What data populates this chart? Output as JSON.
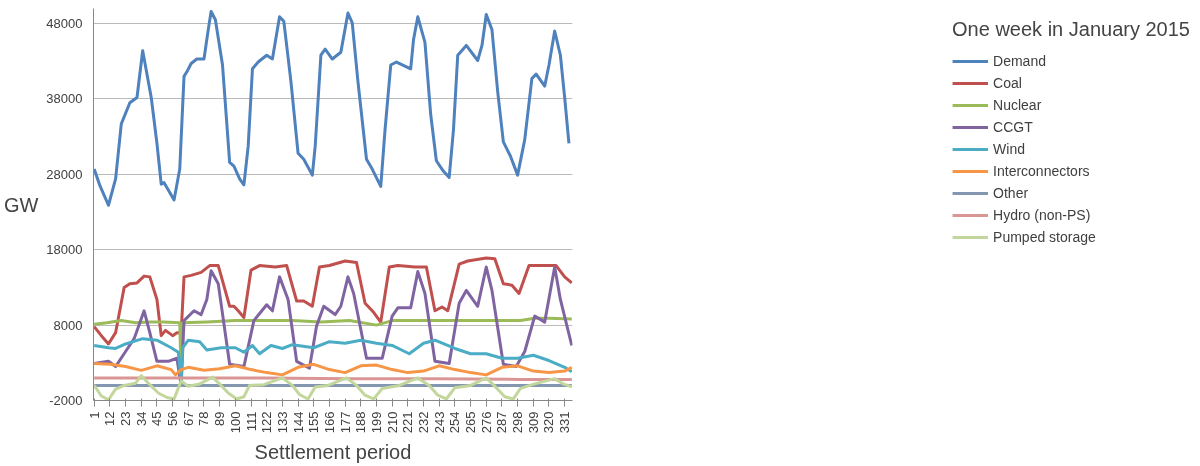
{
  "chart_data": {
    "type": "line",
    "legend_title": "One week in January 2015",
    "xlabel": "Settlement period",
    "ylabel": "GW",
    "xlim": [
      0.5,
      336.5
    ],
    "xticks": [
      1,
      12,
      23,
      34,
      45,
      56,
      67,
      78,
      89,
      100,
      111,
      122,
      133,
      144,
      155,
      166,
      177,
      188,
      199,
      210,
      221,
      232,
      243,
      254,
      265,
      276,
      287,
      298,
      309,
      320,
      331
    ],
    "ylim": [
      -2000,
      50000
    ],
    "yticks": [
      -2000,
      8000,
      18000,
      28000,
      38000,
      48000
    ],
    "grid": "y",
    "legend": "right",
    "marker": "none",
    "line_style": "solid",
    "series": [
      {
        "name": "Demand",
        "color": "#4f81bd",
        "x": [
          1,
          5,
          11,
          16,
          20,
          26,
          31,
          35,
          41,
          45,
          48,
          50,
          54,
          57,
          61,
          64,
          66,
          69,
          73,
          78,
          81,
          83,
          86,
          91,
          96,
          99,
          103,
          106,
          109,
          112,
          116,
          122,
          126,
          131,
          134,
          139,
          144,
          148,
          154,
          156,
          160,
          163,
          168,
          174,
          179,
          182,
          186,
          192,
          196,
          202,
          205,
          209,
          213,
          223,
          225,
          228,
          233,
          237,
          241,
          246,
          250,
          253,
          256,
          262,
          270,
          273,
          276,
          280,
          284,
          288,
          293,
          298,
          303,
          308,
          311,
          317,
          320,
          324,
          328,
          331,
          334
        ],
        "values": [
          28700,
          26500,
          23900,
          27400,
          34700,
          37500,
          38200,
          44400,
          38200,
          32100,
          26700,
          26900,
          25600,
          24600,
          28700,
          41000,
          41600,
          42700,
          43300,
          43300,
          47200,
          49600,
          48500,
          42500,
          29600,
          29100,
          27400,
          26600,
          31700,
          42000,
          42900,
          43800,
          43300,
          48900,
          48300,
          40300,
          30800,
          30000,
          27900,
          31700,
          43800,
          44600,
          43300,
          44200,
          49400,
          48100,
          40300,
          30000,
          28700,
          26400,
          33900,
          42500,
          42900,
          42000,
          45900,
          48900,
          45500,
          36000,
          29800,
          28400,
          27600,
          33900,
          43800,
          45100,
          43100,
          45100,
          49200,
          47200,
          39000,
          32300,
          30400,
          27900,
          32600,
          40700,
          41300,
          39700,
          42500,
          47000,
          43800,
          38200,
          32100
        ]
      },
      {
        "name": "Coal",
        "color": "#c0504d",
        "x": [
          1,
          6,
          11,
          16,
          22,
          26,
          31,
          36,
          40,
          45,
          48,
          51,
          56,
          59,
          62,
          64,
          69,
          76,
          82,
          88,
          96,
          99,
          102,
          106,
          111,
          117,
          128,
          136,
          143,
          148,
          154,
          159,
          166,
          177,
          185,
          191,
          197,
          202,
          208,
          214,
          226,
          234,
          240,
          245,
          249,
          257,
          263,
          276,
          282,
          288,
          294,
          299,
          306,
          317,
          325,
          331,
          336
        ],
        "values": [
          7800,
          6600,
          5500,
          7000,
          13000,
          13500,
          13600,
          14500,
          14400,
          11400,
          6600,
          7300,
          6600,
          7000,
          7000,
          14400,
          14600,
          15000,
          15900,
          15900,
          10500,
          10500,
          9900,
          9000,
          15300,
          15900,
          15700,
          15900,
          11200,
          11200,
          10500,
          15700,
          15900,
          16500,
          16300,
          10900,
          9700,
          8400,
          15700,
          15900,
          15700,
          15700,
          9900,
          10400,
          9900,
          16100,
          16500,
          16900,
          16800,
          13500,
          13300,
          12200,
          15900,
          15900,
          15900,
          14400,
          13600
        ]
      },
      {
        "name": "Nuclear",
        "color": "#9bbb59",
        "x": [
          1,
          10,
          20,
          30,
          40,
          50,
          61,
          62,
          63,
          80,
          100,
          120,
          140,
          160,
          180,
          199,
          210,
          240,
          260,
          280,
          300,
          310,
          320,
          336
        ],
        "values": [
          8100,
          8300,
          8600,
          8300,
          8400,
          8400,
          8300,
          1000,
          8300,
          8400,
          8600,
          8600,
          8600,
          8400,
          8600,
          8000,
          8600,
          8600,
          8600,
          8600,
          8600,
          8900,
          8900,
          8800
        ]
      },
      {
        "name": "CCGT",
        "color": "#8064a2",
        "x": [
          1,
          11,
          16,
          23,
          29,
          36,
          40,
          45,
          53,
          59,
          62,
          64,
          71,
          76,
          80,
          83,
          88,
          96,
          106,
          113,
          122,
          126,
          131,
          137,
          143,
          152,
          157,
          162,
          170,
          174,
          179,
          183,
          192,
          203,
          210,
          214,
          223,
          228,
          233,
          240,
          250,
          257,
          262,
          270,
          276,
          280,
          288,
          297,
          303,
          310,
          317,
          324,
          328,
          336
        ],
        "values": [
          2900,
          3200,
          2500,
          4500,
          6200,
          9900,
          7000,
          3200,
          3200,
          3600,
          0,
          8600,
          9900,
          9400,
          11400,
          15200,
          13500,
          2800,
          2500,
          8600,
          10700,
          9900,
          14400,
          11400,
          3200,
          2300,
          7900,
          10500,
          9400,
          10500,
          14400,
          12200,
          3600,
          3600,
          9200,
          10300,
          10300,
          15100,
          12200,
          3200,
          2900,
          10900,
          12600,
          10500,
          15700,
          12600,
          2800,
          2500,
          4500,
          9200,
          8400,
          15700,
          11400,
          5300
        ]
      },
      {
        "name": "Wind",
        "color": "#4bacc6",
        "x": [
          1,
          11,
          16,
          23,
          35,
          45,
          55,
          60,
          62,
          63,
          67,
          75,
          80,
          90,
          100,
          106,
          112,
          117,
          125,
          133,
          140,
          155,
          166,
          177,
          188,
          199,
          210,
          222,
          232,
          240,
          254,
          265,
          276,
          287,
          298,
          309,
          320,
          331,
          336
        ],
        "values": [
          5300,
          5000,
          4900,
          5500,
          6200,
          6000,
          5000,
          4400,
          600,
          5000,
          6000,
          5800,
          4700,
          5000,
          5000,
          4400,
          5300,
          4200,
          5300,
          4900,
          5400,
          5000,
          5800,
          5600,
          6000,
          5600,
          5300,
          4200,
          5600,
          6000,
          4900,
          4200,
          4200,
          3600,
          3600,
          4000,
          3300,
          2400,
          1800
        ]
      },
      {
        "name": "Interconnectors",
        "color": "#f79646",
        "x": [
          1,
          12,
          23,
          34,
          45,
          55,
          58,
          62,
          67,
          78,
          89,
          100,
          111,
          122,
          133,
          144,
          155,
          166,
          177,
          188,
          199,
          210,
          221,
          232,
          243,
          254,
          265,
          276,
          287,
          298,
          309,
          320,
          331,
          336
        ],
        "values": [
          2900,
          2800,
          2500,
          2000,
          2600,
          2100,
          1400,
          2100,
          2400,
          2000,
          2200,
          2600,
          2100,
          1700,
          1400,
          2400,
          2800,
          2100,
          1700,
          2600,
          2700,
          2100,
          1700,
          1900,
          2600,
          2100,
          1700,
          1400,
          2400,
          2600,
          1900,
          1700,
          1900,
          2400
        ]
      },
      {
        "name": "Other",
        "color": "#8497b0",
        "x": [
          1,
          60,
          120,
          180,
          240,
          300,
          336
        ],
        "values": [
          0,
          0,
          0,
          0,
          0,
          0,
          0
        ]
      },
      {
        "name": "Hydro (non-PS)",
        "color": "#d99694",
        "x": [
          1,
          60,
          120,
          180,
          240,
          300,
          336
        ],
        "values": [
          1000,
          1000,
          1000,
          900,
          900,
          800,
          800
        ]
      },
      {
        "name": "Pumped storage",
        "color": "#c3d69b",
        "x": [
          1,
          6,
          11,
          16,
          22,
          30,
          34,
          40,
          46,
          52,
          57,
          62,
          67,
          75,
          84,
          90,
          95,
          101,
          106,
          110,
          120,
          133,
          140,
          145,
          151,
          156,
          165,
          178,
          185,
          191,
          197,
          203,
          215,
          228,
          236,
          242,
          248,
          254,
          265,
          276,
          283,
          289,
          295,
          300,
          310,
          324,
          330,
          336
        ],
        "values": [
          0,
          -1400,
          -1900,
          -500,
          0,
          300,
          1300,
          100,
          -1000,
          -1600,
          -1800,
          600,
          -100,
          200,
          1100,
          0,
          -1000,
          -1800,
          -1500,
          0,
          100,
          1000,
          0,
          -1200,
          -1800,
          -200,
          0,
          1000,
          0,
          -1300,
          -1800,
          -400,
          0,
          1000,
          0,
          -1300,
          -1800,
          -300,
          0,
          1000,
          -300,
          -1500,
          -1800,
          -400,
          200,
          900,
          200,
          -200
        ]
      }
    ]
  }
}
